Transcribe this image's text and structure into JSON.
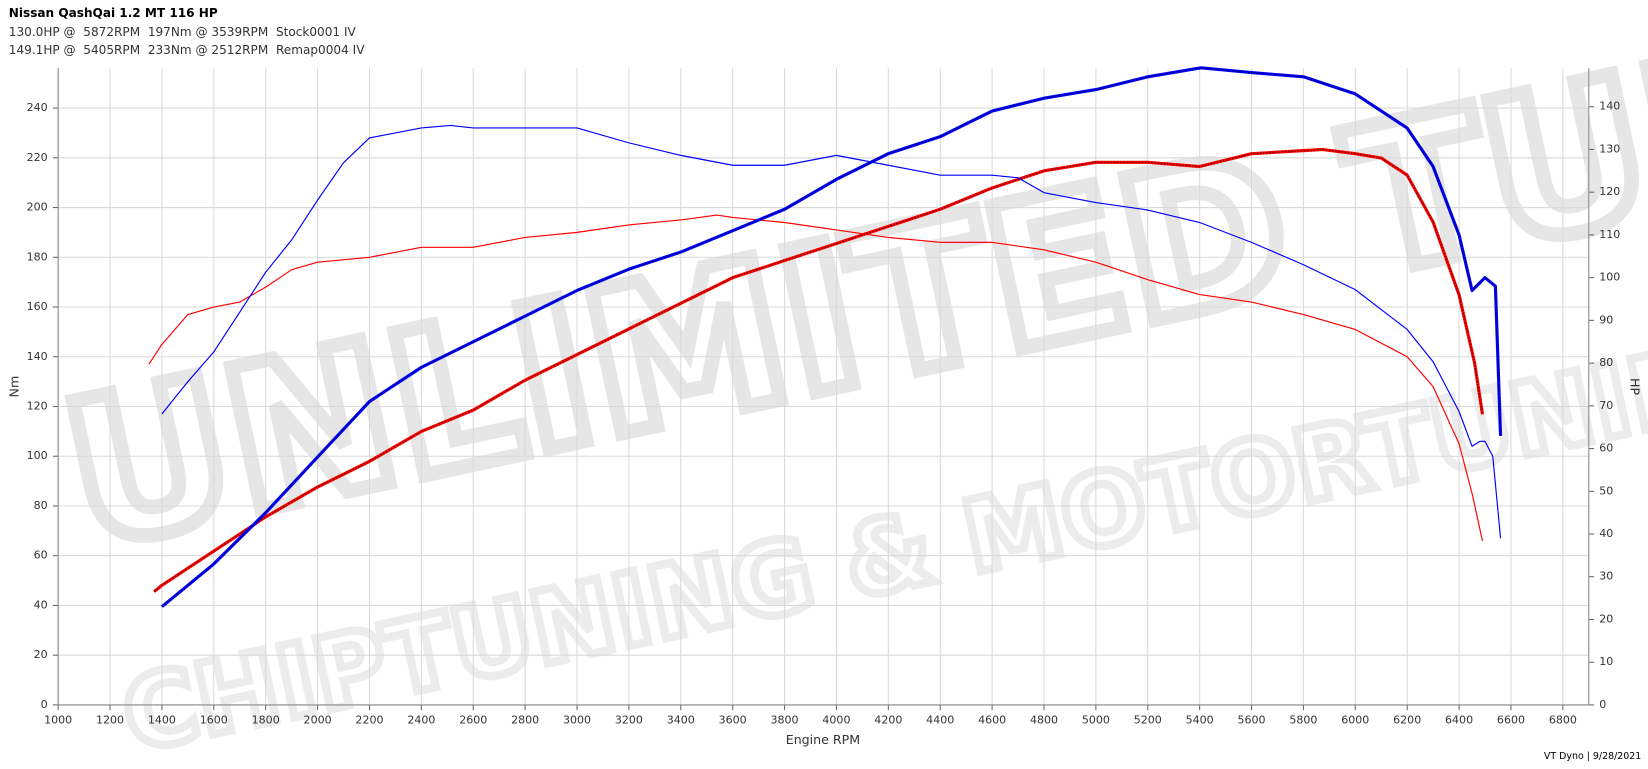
{
  "chart_data": {
    "type": "line",
    "title": "Nissan QashQai 1.2 MT 116 HP",
    "header_lines": [
      {
        "text": "130.0HP @  5872RPM  197Nm @ 3539RPM  Stock0001 IV",
        "color": "#ff0000"
      },
      {
        "text": "149.1HP @  5405RPM  233Nm @ 2512RPM  Remap0004 IV",
        "color": "#0000ff"
      }
    ],
    "watermark": [
      "UNLIMITED TUNING",
      "CHIPTUNING & MOTORTUNING"
    ],
    "footer": "VT Dyno | 9/28/2021",
    "x_label": "Engine RPM",
    "y_label": "Nm",
    "y2_label": "HP",
    "xlim": [
      1000,
      6900
    ],
    "ylim": [
      0,
      256
    ],
    "y2lim": [
      0,
      149
    ],
    "xticks": [
      1000,
      1200,
      1400,
      1600,
      1800,
      2000,
      2200,
      2400,
      2600,
      2800,
      3000,
      3200,
      3400,
      3600,
      3800,
      4000,
      4200,
      4400,
      4600,
      4800,
      5000,
      5200,
      5400,
      5600,
      5800,
      6000,
      6200,
      6400,
      6600,
      6800
    ],
    "yticks": [
      0,
      20,
      40,
      60,
      80,
      100,
      120,
      140,
      160,
      180,
      200,
      220,
      240
    ],
    "y2ticks": [
      0,
      10,
      20,
      30,
      40,
      50,
      60,
      70,
      80,
      90,
      100,
      110,
      120,
      130,
      140
    ],
    "grid": true,
    "series": [
      {
        "color": "#ff0000",
        "axis": "y",
        "style": "solid",
        "x": [
          1350,
          1400,
          1500,
          1600,
          1700,
          1800,
          1900,
          2000,
          2200,
          2400,
          2600,
          2800,
          3000,
          3200,
          3400,
          3539,
          3600,
          3800,
          4000,
          4200,
          4400,
          4600,
          4800,
          5000,
          5200,
          5400,
          5600,
          5800,
          6000,
          6200,
          6300,
          6400,
          6450,
          6490
        ],
        "values": [
          137,
          145,
          157,
          160,
          162,
          168,
          175,
          178,
          180,
          184,
          184,
          188,
          190,
          193,
          195,
          197,
          196,
          194,
          191,
          188,
          186,
          186,
          183,
          178,
          171,
          165,
          162,
          157,
          151,
          140,
          128,
          105,
          85,
          66
        ]
      },
      {
        "color": "#ff0000",
        "axis": "y2",
        "style": "dotted",
        "dot_color": "#000000",
        "x": [
          1370,
          1400,
          1600,
          1800,
          2000,
          2200,
          2400,
          2600,
          2800,
          3000,
          3200,
          3400,
          3600,
          3800,
          4000,
          4200,
          4400,
          4600,
          4800,
          5000,
          5200,
          5400,
          5600,
          5872,
          6000,
          6100,
          6200,
          6300,
          6400,
          6460,
          6490
        ],
        "values": [
          26.5,
          28,
          36,
          44,
          51,
          57,
          64,
          69,
          76,
          82,
          88,
          94,
          100,
          104,
          108,
          112,
          116,
          121,
          125,
          127,
          127,
          126,
          129,
          130,
          129,
          128,
          124,
          113,
          96,
          80,
          68
        ]
      },
      {
        "color": "#0000ff",
        "axis": "y",
        "style": "solid",
        "x": [
          1400,
          1500,
          1600,
          1700,
          1800,
          1900,
          2000,
          2100,
          2200,
          2300,
          2400,
          2512,
          2600,
          2800,
          3000,
          3200,
          3400,
          3600,
          3800,
          4000,
          4200,
          4400,
          4600,
          4700,
          4800,
          5000,
          5200,
          5400,
          5600,
          5800,
          6000,
          6200,
          6300,
          6400,
          6450,
          6480,
          6500,
          6530,
          6560
        ],
        "values": [
          117,
          130,
          142,
          158,
          174,
          187,
          203,
          218,
          228,
          230,
          232,
          233,
          232,
          232,
          232,
          226,
          221,
          217,
          217,
          221,
          217,
          213,
          213,
          212,
          206,
          202,
          199,
          194,
          186,
          177,
          167,
          151,
          138,
          118,
          104,
          106,
          106,
          100,
          67
        ]
      },
      {
        "color": "#0000ff",
        "axis": "y2",
        "style": "dotted",
        "dot_color": "#000000",
        "x": [
          1400,
          1600,
          1800,
          2000,
          2200,
          2400,
          2600,
          2800,
          3000,
          3200,
          3400,
          3600,
          3800,
          4000,
          4200,
          4400,
          4600,
          4800,
          5000,
          5200,
          5405,
          5600,
          5800,
          6000,
          6200,
          6300,
          6400,
          6450,
          6500,
          6540,
          6560
        ],
        "values": [
          23,
          33,
          45,
          58,
          71,
          79,
          85,
          91,
          97,
          102,
          106,
          111,
          116,
          123,
          129,
          133,
          139,
          142,
          144,
          147,
          149.1,
          148,
          147,
          143,
          135,
          126,
          110,
          97,
          100,
          98,
          63
        ]
      }
    ]
  }
}
